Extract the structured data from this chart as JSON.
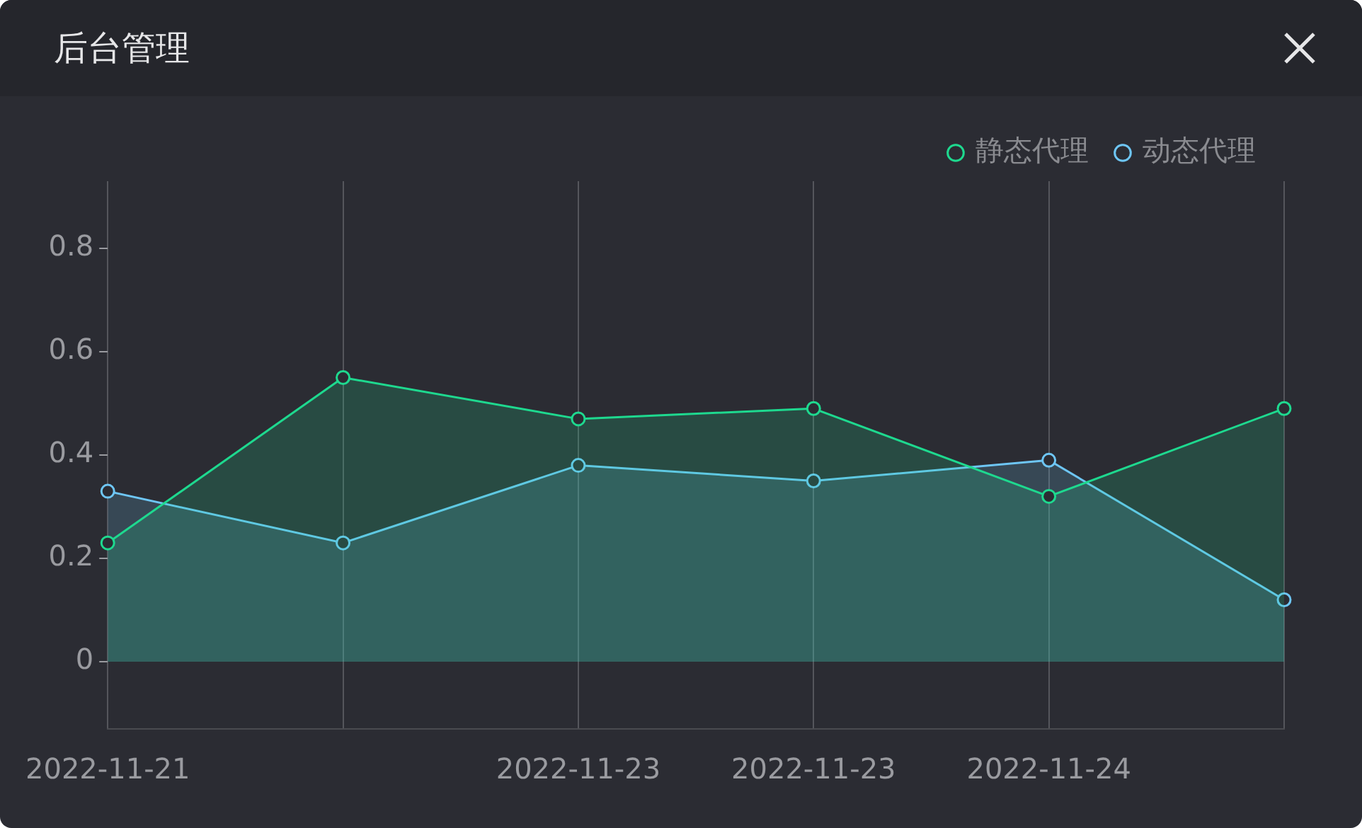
{
  "chart_data": {
    "type": "area",
    "title": "后台管理",
    "categories": [
      "2022-11-21",
      null,
      "2022-11-23",
      "2022-11-23",
      "2022-11-24",
      null
    ],
    "ylim": [
      -0.13,
      0.93
    ],
    "yticks": [
      0,
      0.2,
      0.4,
      0.6,
      0.8
    ],
    "series": [
      {
        "name": "静态代理",
        "color": "#1ed98f",
        "values": [
          0.23,
          0.55,
          0.47,
          0.49,
          0.32,
          0.49
        ]
      },
      {
        "name": "动态代理",
        "color": "#6ec6f5",
        "values": [
          0.33,
          0.23,
          0.38,
          0.35,
          0.39,
          0.12
        ]
      }
    ],
    "legend": "top right",
    "marker": "circle",
    "grid": "x"
  }
}
